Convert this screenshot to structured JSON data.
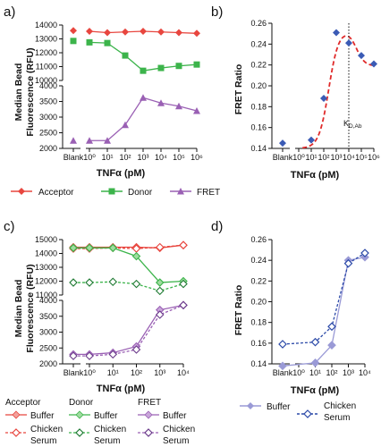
{
  "colors": {
    "acceptor": "#e8463f",
    "donor": "#3cb44b",
    "fret": "#9a60b4",
    "fit": "#e02b2b",
    "ratio": "#3b5bb5",
    "buffer": "#9a9ad6",
    "serum": "#2c4aa8"
  },
  "panels": {
    "a": "a)",
    "b": "b)",
    "c": "c)",
    "d": "d)"
  },
  "a_legend": {
    "acceptor": "Acceptor",
    "donor": "Donor",
    "fret": "FRET"
  },
  "c_legend": {
    "acceptor": "Acceptor",
    "donor": "Donor",
    "fret": "FRET",
    "buffer": "Buffer",
    "chicken_serum_1": "Chicken",
    "chicken_serum_2": "Serum"
  },
  "d_legend": {
    "buffer": "Buffer",
    "chicken_serum_1": "Chicken",
    "chicken_serum_2": "Serum"
  },
  "chart_data": [
    {
      "panel": "a",
      "type": "line",
      "ylabel": "Median Bead Fluorescence (RFU)",
      "xlabel": "TNFα (pM)",
      "xticks": [
        "Blank",
        "10⁰",
        "10¹",
        "10²",
        "10³",
        "10⁴",
        "10⁵",
        "10⁶"
      ],
      "x": [
        "Blank",
        1,
        10,
        100,
        1000,
        10000,
        100000,
        1000000
      ],
      "ylim_upper": [
        10000,
        14000
      ],
      "yticks_upper": [
        10000,
        11000,
        12000,
        13000,
        14000
      ],
      "ylim_lower": [
        2000,
        4000
      ],
      "yticks_lower": [
        2000,
        2500,
        3000,
        3500,
        4000
      ],
      "series": [
        {
          "name": "Acceptor",
          "values": [
            13600,
            13550,
            13450,
            13500,
            13550,
            13500,
            13450,
            13400
          ]
        },
        {
          "name": "Donor",
          "values": [
            12850,
            12750,
            12700,
            11800,
            10700,
            10900,
            11050,
            11150
          ]
        },
        {
          "name": "FRET",
          "values": [
            2250,
            2250,
            2250,
            2750,
            3620,
            3450,
            3350,
            3200
          ]
        }
      ]
    },
    {
      "panel": "b",
      "type": "scatter",
      "ylabel": "FRET Ratio",
      "xlabel": "TNFα (pM)",
      "xticks": [
        "Blank",
        "10⁰",
        "10¹",
        "10²",
        "10³",
        "10⁴",
        "10⁵",
        "10⁶"
      ],
      "ylim": [
        0.14,
        0.26
      ],
      "yticks": [
        "0.14",
        "0.16",
        "0.18",
        "0.20",
        "0.22",
        "0.24",
        "0.26"
      ],
      "x": [
        "Blank",
        10,
        100,
        1000,
        10000,
        100000,
        1000000
      ],
      "values": [
        0.145,
        0.148,
        0.188,
        0.251,
        0.241,
        0.229,
        0.221
      ],
      "fit": "dashed red curve",
      "kd_label": "K",
      "kd_subscript": "D,Ab",
      "kd_x": 10000
    },
    {
      "panel": "c",
      "type": "line",
      "ylabel": "Median Bead Fluorescence (RFU)",
      "xlabel": "TNFα (pM)",
      "xticks": [
        "Blank",
        "10⁰",
        "10¹",
        "10²",
        "10³",
        "10⁴"
      ],
      "x": [
        "Blank",
        1,
        10,
        100,
        1000,
        10000
      ],
      "ylim_upper": [
        11000,
        15000
      ],
      "yticks_upper": [
        11000,
        12000,
        13000,
        14000,
        15000
      ],
      "ylim_lower": [
        2000,
        4000
      ],
      "yticks_lower": [
        2000,
        2500,
        3000,
        3500,
        4000
      ],
      "series": [
        {
          "name": "Acceptor Buffer",
          "values": [
            14450,
            14450,
            14450,
            14450,
            14400,
            14600
          ]
        },
        {
          "name": "Acceptor Chicken Serum",
          "values": [
            14350,
            14350,
            14400,
            14350,
            14450,
            14600
          ]
        },
        {
          "name": "Donor Buffer",
          "values": [
            14400,
            14400,
            14400,
            13800,
            11900,
            12000
          ]
        },
        {
          "name": "Donor Chicken Serum",
          "values": [
            11900,
            11900,
            11950,
            11800,
            11300,
            11800
          ]
        },
        {
          "name": "FRET Buffer",
          "values": [
            2300,
            2300,
            2350,
            2550,
            3700,
            3850
          ]
        },
        {
          "name": "FRET Chicken Serum",
          "values": [
            2250,
            2250,
            2300,
            2450,
            3550,
            3850
          ]
        }
      ]
    },
    {
      "panel": "d",
      "type": "line",
      "ylabel": "FRET Ratio",
      "xlabel": "TNFα (pM)",
      "xticks": [
        "Blank",
        "10⁰",
        "10¹",
        "10²",
        "10³",
        "10⁴"
      ],
      "ylim": [
        0.14,
        0.26
      ],
      "yticks": [
        "0.14",
        "0.16",
        "0.18",
        "0.20",
        "0.22",
        "0.24",
        "0.26"
      ],
      "x": [
        "Blank",
        10,
        100,
        1000,
        10000
      ],
      "series": [
        {
          "name": "Buffer",
          "values": [
            0.138,
            0.141,
            0.158,
            0.24,
            0.243
          ]
        },
        {
          "name": "Chicken Serum",
          "values": [
            0.159,
            0.161,
            0.176,
            0.237,
            0.247
          ]
        }
      ]
    }
  ]
}
